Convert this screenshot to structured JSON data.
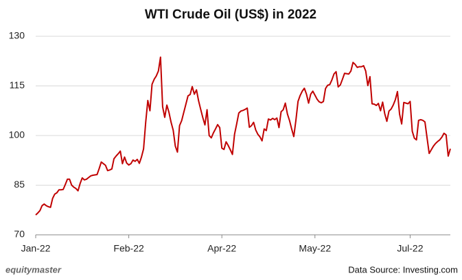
{
  "chart_data": {
    "type": "line",
    "title": "WTI Crude Oil (US$) in 2022",
    "categories": [
      "Jan-22",
      null,
      null,
      null,
      null,
      null,
      null,
      null,
      null,
      null,
      null,
      null,
      null,
      null,
      null,
      null,
      null,
      null,
      null,
      null,
      null,
      null,
      null,
      null,
      null,
      null,
      null,
      null,
      null,
      null,
      null,
      null,
      null,
      null,
      null,
      null,
      null,
      null,
      null,
      null,
      null,
      null,
      null,
      null,
      "Feb-22",
      null,
      null,
      null,
      null,
      null,
      null,
      null,
      null,
      null,
      null,
      null,
      null,
      null,
      null,
      null,
      null,
      null,
      null,
      null,
      null,
      null,
      null,
      null,
      null,
      null,
      null,
      null,
      null,
      null,
      null,
      null,
      null,
      null,
      null,
      null,
      null,
      null,
      null,
      null,
      null,
      null,
      null,
      null,
      "Apr-22",
      null,
      null,
      null,
      null,
      null,
      null,
      null,
      null,
      null,
      null,
      null,
      null,
      null,
      null,
      null,
      null,
      null,
      null,
      null,
      null,
      null,
      null,
      null,
      null,
      null,
      null,
      null,
      null,
      null,
      null,
      null,
      null,
      null,
      null,
      null,
      null,
      null,
      null,
      null,
      null,
      null,
      null,
      null,
      "May-22",
      null,
      null,
      null,
      null,
      null,
      null,
      null,
      null,
      null,
      null,
      null,
      null,
      null,
      null,
      null,
      null,
      null,
      null,
      null,
      null,
      null,
      null,
      null,
      null,
      null,
      null,
      null,
      null,
      null,
      null,
      null,
      null,
      null,
      null,
      null,
      null,
      null,
      null,
      null,
      null,
      null,
      null,
      null,
      null,
      "Jul-22",
      null,
      null,
      null,
      null,
      null,
      null,
      null,
      null,
      null,
      null,
      null,
      null,
      null,
      null,
      null,
      null,
      null,
      null,
      null
    ],
    "values": [
      76.0,
      76.6,
      77.3,
      78.8,
      79.3,
      78.8,
      78.5,
      78.3,
      81,
      82.3,
      82.7,
      83.6,
      83.6,
      83.7,
      85.2,
      86.8,
      86.8,
      85,
      84.4,
      84,
      83.3,
      85.5,
      87.2,
      86.6,
      86.8,
      87.3,
      87.8,
      88,
      88.1,
      88.2,
      90,
      92,
      91.5,
      91,
      89.4,
      89.6,
      89.9,
      93,
      93.8,
      94.5,
      95.3,
      91.5,
      93.5,
      91.7,
      91.1,
      91.5,
      92.6,
      92.2,
      92.8,
      91.6,
      93.5,
      96,
      104,
      110.6,
      107.5,
      115.5,
      117,
      118,
      119.5,
      123.7,
      108.7,
      105.5,
      109.2,
      107,
      104,
      101.6,
      96.8,
      95,
      103,
      104.5,
      107,
      109.5,
      112,
      112.4,
      114.8,
      112.5,
      113.8,
      110.5,
      107.9,
      105.4,
      103.2,
      107.8,
      100,
      99.3,
      100.8,
      102,
      103.3,
      102.4,
      96.2,
      95.8,
      98.1,
      97,
      95.7,
      94.3,
      100.4,
      103.5,
      106.8,
      107.4,
      107.6,
      107.9,
      108.3,
      102.5,
      103,
      104,
      101.7,
      100.4,
      99.6,
      98.4,
      102,
      101.5,
      105,
      104.7,
      105.2,
      104.8,
      105.3,
      102.4,
      107.2,
      107.8,
      109.8,
      106.5,
      104.5,
      102,
      99.7,
      104.6,
      110.3,
      112.1,
      113.4,
      114.3,
      112.5,
      109.8,
      112.5,
      113.4,
      112.2,
      111,
      110.2,
      109.9,
      110.3,
      114.2,
      115.2,
      115.4,
      116.8,
      118.6,
      119.3,
      114.7,
      115.3,
      117,
      118.8,
      118.7,
      118.6,
      119.5,
      122.1,
      121.5,
      120.6,
      120.8,
      120.8,
      121.1,
      119.5,
      115.1,
      117.8,
      109.6,
      109.5,
      109.1,
      109.7,
      107.5,
      110.1,
      106.6,
      104.3,
      107.4,
      108,
      109.2,
      110.8,
      113.3,
      106.5,
      103.5,
      110,
      109.8,
      109.6,
      110.3,
      101.3,
      99.2,
      98.7,
      104.6,
      104.8,
      104.6,
      104.1,
      99.3,
      94.6,
      95.7,
      96.8,
      97.6,
      98.2,
      98.7,
      99.5,
      100.7,
      100.2,
      93.8,
      96
    ],
    "color": "#c00000",
    "ylim": [
      70,
      130
    ],
    "yticks": [
      70,
      85,
      100,
      115,
      130
    ],
    "grid": true,
    "brand": "equitymaster",
    "source": "Data Source: Investing.com"
  }
}
